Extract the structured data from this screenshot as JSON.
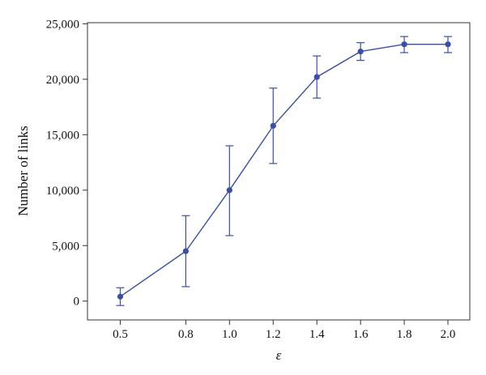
{
  "chart_data": {
    "type": "line",
    "title": "",
    "xlabel": "ε",
    "ylabel": "Number of links",
    "x": [
      0.5,
      0.8,
      1.0,
      1.2,
      1.4,
      1.6,
      1.8,
      2.0
    ],
    "x_tick_labels": [
      "0.5",
      "0.8",
      "1.0",
      "1.2",
      "1.4",
      "1.6",
      "1.8",
      "2.0"
    ],
    "y_ticks": [
      0,
      5000,
      10000,
      15000,
      20000,
      25000
    ],
    "y_tick_labels": [
      "0",
      "5,000",
      "10,000",
      "15,000",
      "20,000",
      "25,000"
    ],
    "xlim": [
      0.35,
      2.1
    ],
    "ylim": [
      -1700,
      25100
    ],
    "grid": false,
    "legend": "none",
    "series": [
      {
        "values": [
          400,
          4500,
          10000,
          15800,
          20200,
          22500,
          23150,
          23150
        ],
        "error_low": [
          -400,
          1300,
          5900,
          12400,
          18300,
          21700,
          22400,
          22400
        ],
        "error_high": [
          1200,
          7700,
          14000,
          19200,
          22100,
          23300,
          23850,
          23850
        ],
        "color": "#3a4ea6"
      }
    ]
  }
}
